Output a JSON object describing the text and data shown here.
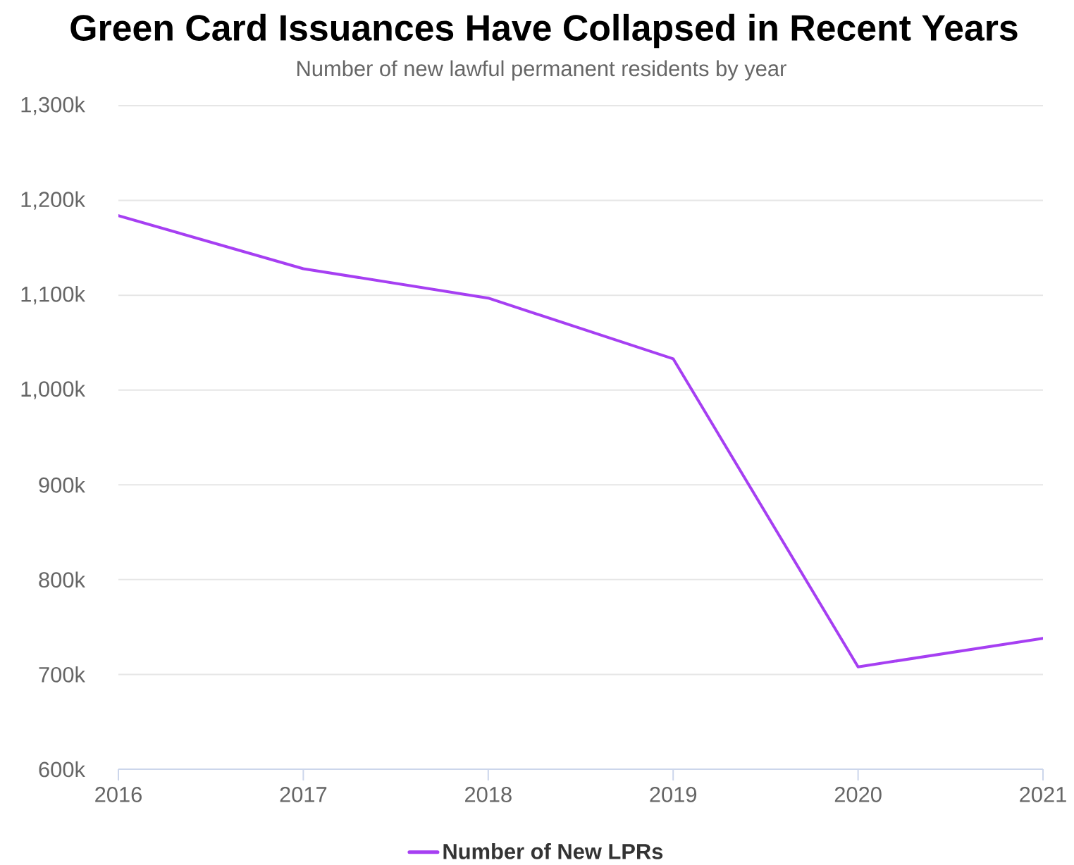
{
  "chart_data": {
    "type": "line",
    "title": "Green Card Issuances Have Collapsed in Recent Years",
    "subtitle": "Number of new lawful permanent residents by year",
    "categories": [
      "2016",
      "2017",
      "2018",
      "2019",
      "2020",
      "2021"
    ],
    "series": [
      {
        "name": "Number of New LPRs",
        "color": "#a63ff2",
        "values": [
          1184000,
          1128000,
          1097000,
          1033000,
          708000,
          738000
        ]
      }
    ],
    "ylim": [
      600000,
      1300000
    ],
    "yticks": [
      {
        "value": 600000,
        "label": "600k"
      },
      {
        "value": 700000,
        "label": "700k"
      },
      {
        "value": 800000,
        "label": "800k"
      },
      {
        "value": 900000,
        "label": "900k"
      },
      {
        "value": 1000000,
        "label": "1,000k"
      },
      {
        "value": 1100000,
        "label": "1,100k"
      },
      {
        "value": 1200000,
        "label": "1,200k"
      },
      {
        "value": 1300000,
        "label": "1,300k"
      }
    ],
    "grid": "y",
    "legend": "bottom"
  }
}
